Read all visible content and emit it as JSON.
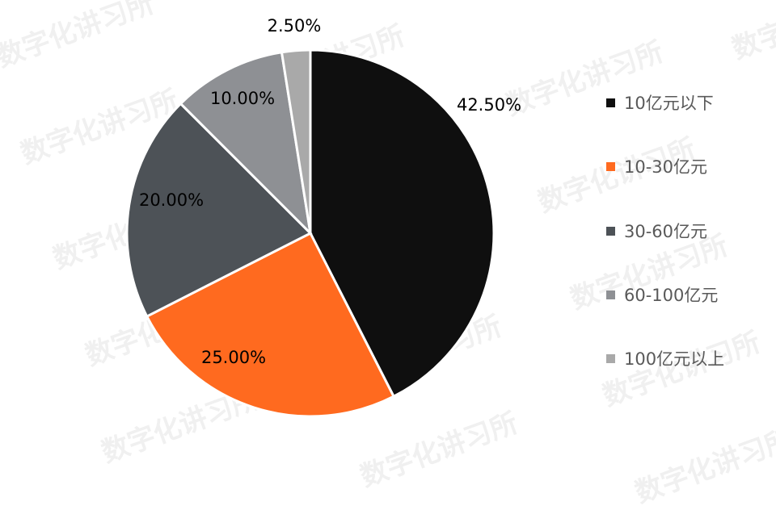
{
  "watermark": "数字化讲习所",
  "chart_data": {
    "type": "pie",
    "title": "",
    "categories": [
      "10亿元以下",
      "10-30亿元",
      "30-60亿元",
      "60-100亿元",
      "100亿元以上"
    ],
    "values": [
      42.5,
      25.0,
      20.0,
      10.0,
      2.5
    ],
    "data_labels": [
      "42.50%",
      "25.00%",
      "20.00%",
      "10.00%",
      "2.50%"
    ],
    "colors": [
      "#0f0f0f",
      "#ff6a1f",
      "#4d5257",
      "#8e9094",
      "#a9a9a9"
    ],
    "start_angle": "12 o'clock",
    "direction": "clockwise",
    "legend_position": "right"
  }
}
